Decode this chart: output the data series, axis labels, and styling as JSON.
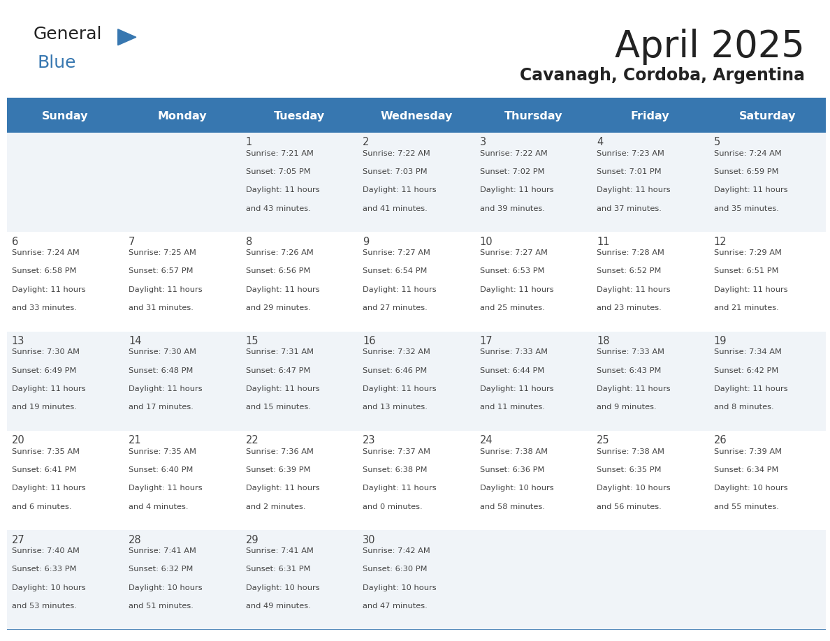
{
  "title": "April 2025",
  "subtitle": "Cavanagh, Cordoba, Argentina",
  "days_of_week": [
    "Sunday",
    "Monday",
    "Tuesday",
    "Wednesday",
    "Thursday",
    "Friday",
    "Saturday"
  ],
  "header_bg": "#3777b0",
  "header_text_color": "#FFFFFF",
  "row_bg_odd": "#f0f4f8",
  "row_bg_even": "#FFFFFF",
  "separator_color": "#3777b0",
  "text_color": "#444444",
  "title_color": "#222222",
  "background_color": "#FFFFFF",
  "calendar_data": [
    [
      {
        "day": "",
        "sunrise": "",
        "sunset": "",
        "daylight_h": "",
        "daylight_m": ""
      },
      {
        "day": "",
        "sunrise": "",
        "sunset": "",
        "daylight_h": "",
        "daylight_m": ""
      },
      {
        "day": "1",
        "sunrise": "7:21 AM",
        "sunset": "7:05 PM",
        "daylight_h": "11",
        "daylight_m": "43"
      },
      {
        "day": "2",
        "sunrise": "7:22 AM",
        "sunset": "7:03 PM",
        "daylight_h": "11",
        "daylight_m": "41"
      },
      {
        "day": "3",
        "sunrise": "7:22 AM",
        "sunset": "7:02 PM",
        "daylight_h": "11",
        "daylight_m": "39"
      },
      {
        "day": "4",
        "sunrise": "7:23 AM",
        "sunset": "7:01 PM",
        "daylight_h": "11",
        "daylight_m": "37"
      },
      {
        "day": "5",
        "sunrise": "7:24 AM",
        "sunset": "6:59 PM",
        "daylight_h": "11",
        "daylight_m": "35"
      }
    ],
    [
      {
        "day": "6",
        "sunrise": "7:24 AM",
        "sunset": "6:58 PM",
        "daylight_h": "11",
        "daylight_m": "33"
      },
      {
        "day": "7",
        "sunrise": "7:25 AM",
        "sunset": "6:57 PM",
        "daylight_h": "11",
        "daylight_m": "31"
      },
      {
        "day": "8",
        "sunrise": "7:26 AM",
        "sunset": "6:56 PM",
        "daylight_h": "11",
        "daylight_m": "29"
      },
      {
        "day": "9",
        "sunrise": "7:27 AM",
        "sunset": "6:54 PM",
        "daylight_h": "11",
        "daylight_m": "27"
      },
      {
        "day": "10",
        "sunrise": "7:27 AM",
        "sunset": "6:53 PM",
        "daylight_h": "11",
        "daylight_m": "25"
      },
      {
        "day": "11",
        "sunrise": "7:28 AM",
        "sunset": "6:52 PM",
        "daylight_h": "11",
        "daylight_m": "23"
      },
      {
        "day": "12",
        "sunrise": "7:29 AM",
        "sunset": "6:51 PM",
        "daylight_h": "11",
        "daylight_m": "21"
      }
    ],
    [
      {
        "day": "13",
        "sunrise": "7:30 AM",
        "sunset": "6:49 PM",
        "daylight_h": "11",
        "daylight_m": "19"
      },
      {
        "day": "14",
        "sunrise": "7:30 AM",
        "sunset": "6:48 PM",
        "daylight_h": "11",
        "daylight_m": "17"
      },
      {
        "day": "15",
        "sunrise": "7:31 AM",
        "sunset": "6:47 PM",
        "daylight_h": "11",
        "daylight_m": "15"
      },
      {
        "day": "16",
        "sunrise": "7:32 AM",
        "sunset": "6:46 PM",
        "daylight_h": "11",
        "daylight_m": "13"
      },
      {
        "day": "17",
        "sunrise": "7:33 AM",
        "sunset": "6:44 PM",
        "daylight_h": "11",
        "daylight_m": "11"
      },
      {
        "day": "18",
        "sunrise": "7:33 AM",
        "sunset": "6:43 PM",
        "daylight_h": "11",
        "daylight_m": "9"
      },
      {
        "day": "19",
        "sunrise": "7:34 AM",
        "sunset": "6:42 PM",
        "daylight_h": "11",
        "daylight_m": "8"
      }
    ],
    [
      {
        "day": "20",
        "sunrise": "7:35 AM",
        "sunset": "6:41 PM",
        "daylight_h": "11",
        "daylight_m": "6"
      },
      {
        "day": "21",
        "sunrise": "7:35 AM",
        "sunset": "6:40 PM",
        "daylight_h": "11",
        "daylight_m": "4"
      },
      {
        "day": "22",
        "sunrise": "7:36 AM",
        "sunset": "6:39 PM",
        "daylight_h": "11",
        "daylight_m": "2"
      },
      {
        "day": "23",
        "sunrise": "7:37 AM",
        "sunset": "6:38 PM",
        "daylight_h": "11",
        "daylight_m": "0"
      },
      {
        "day": "24",
        "sunrise": "7:38 AM",
        "sunset": "6:36 PM",
        "daylight_h": "10",
        "daylight_m": "58"
      },
      {
        "day": "25",
        "sunrise": "7:38 AM",
        "sunset": "6:35 PM",
        "daylight_h": "10",
        "daylight_m": "56"
      },
      {
        "day": "26",
        "sunrise": "7:39 AM",
        "sunset": "6:34 PM",
        "daylight_h": "10",
        "daylight_m": "55"
      }
    ],
    [
      {
        "day": "27",
        "sunrise": "7:40 AM",
        "sunset": "6:33 PM",
        "daylight_h": "10",
        "daylight_m": "53"
      },
      {
        "day": "28",
        "sunrise": "7:41 AM",
        "sunset": "6:32 PM",
        "daylight_h": "10",
        "daylight_m": "51"
      },
      {
        "day": "29",
        "sunrise": "7:41 AM",
        "sunset": "6:31 PM",
        "daylight_h": "10",
        "daylight_m": "49"
      },
      {
        "day": "30",
        "sunrise": "7:42 AM",
        "sunset": "6:30 PM",
        "daylight_h": "10",
        "daylight_m": "47"
      },
      {
        "day": "",
        "sunrise": "",
        "sunset": "",
        "daylight_h": "",
        "daylight_m": ""
      },
      {
        "day": "",
        "sunrise": "",
        "sunset": "",
        "daylight_h": "",
        "daylight_m": ""
      },
      {
        "day": "",
        "sunrise": "",
        "sunset": "",
        "daylight_h": "",
        "daylight_m": ""
      }
    ]
  ]
}
